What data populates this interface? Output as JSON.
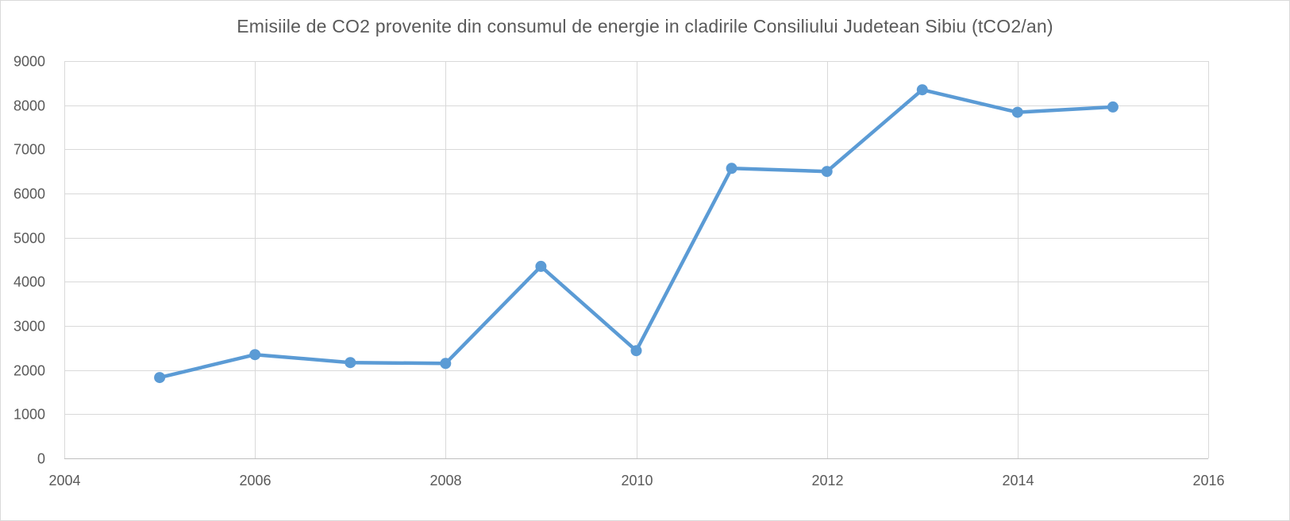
{
  "chart_data": {
    "type": "scatter",
    "title": "Emisiile de CO2 provenite din consumul de energie in cladirile Consiliului Judetean Sibiu (tCO2/an)",
    "xlabel": "",
    "ylabel": "",
    "xlim": [
      2004,
      2016
    ],
    "ylim": [
      0,
      9000
    ],
    "x_ticks": [
      2004,
      2006,
      2008,
      2010,
      2012,
      2014,
      2016
    ],
    "y_ticks": [
      0,
      1000,
      2000,
      3000,
      4000,
      5000,
      6000,
      7000,
      8000,
      9000
    ],
    "grid": true,
    "legend": "none",
    "series": [
      {
        "x": [
          2005,
          2006,
          2007,
          2008,
          2009,
          2010,
          2011,
          2012,
          2013,
          2014,
          2015
        ],
        "y": [
          1830,
          2350,
          2170,
          2150,
          4350,
          2440,
          6570,
          6500,
          8350,
          7840,
          7960
        ],
        "color": "#5b9bd5",
        "style": "line-with-markers"
      }
    ],
    "colors": {
      "grid": "#d9d9d9",
      "axis": "#bfbfbf",
      "text": "#595959",
      "series": "#5b9bd5"
    }
  }
}
